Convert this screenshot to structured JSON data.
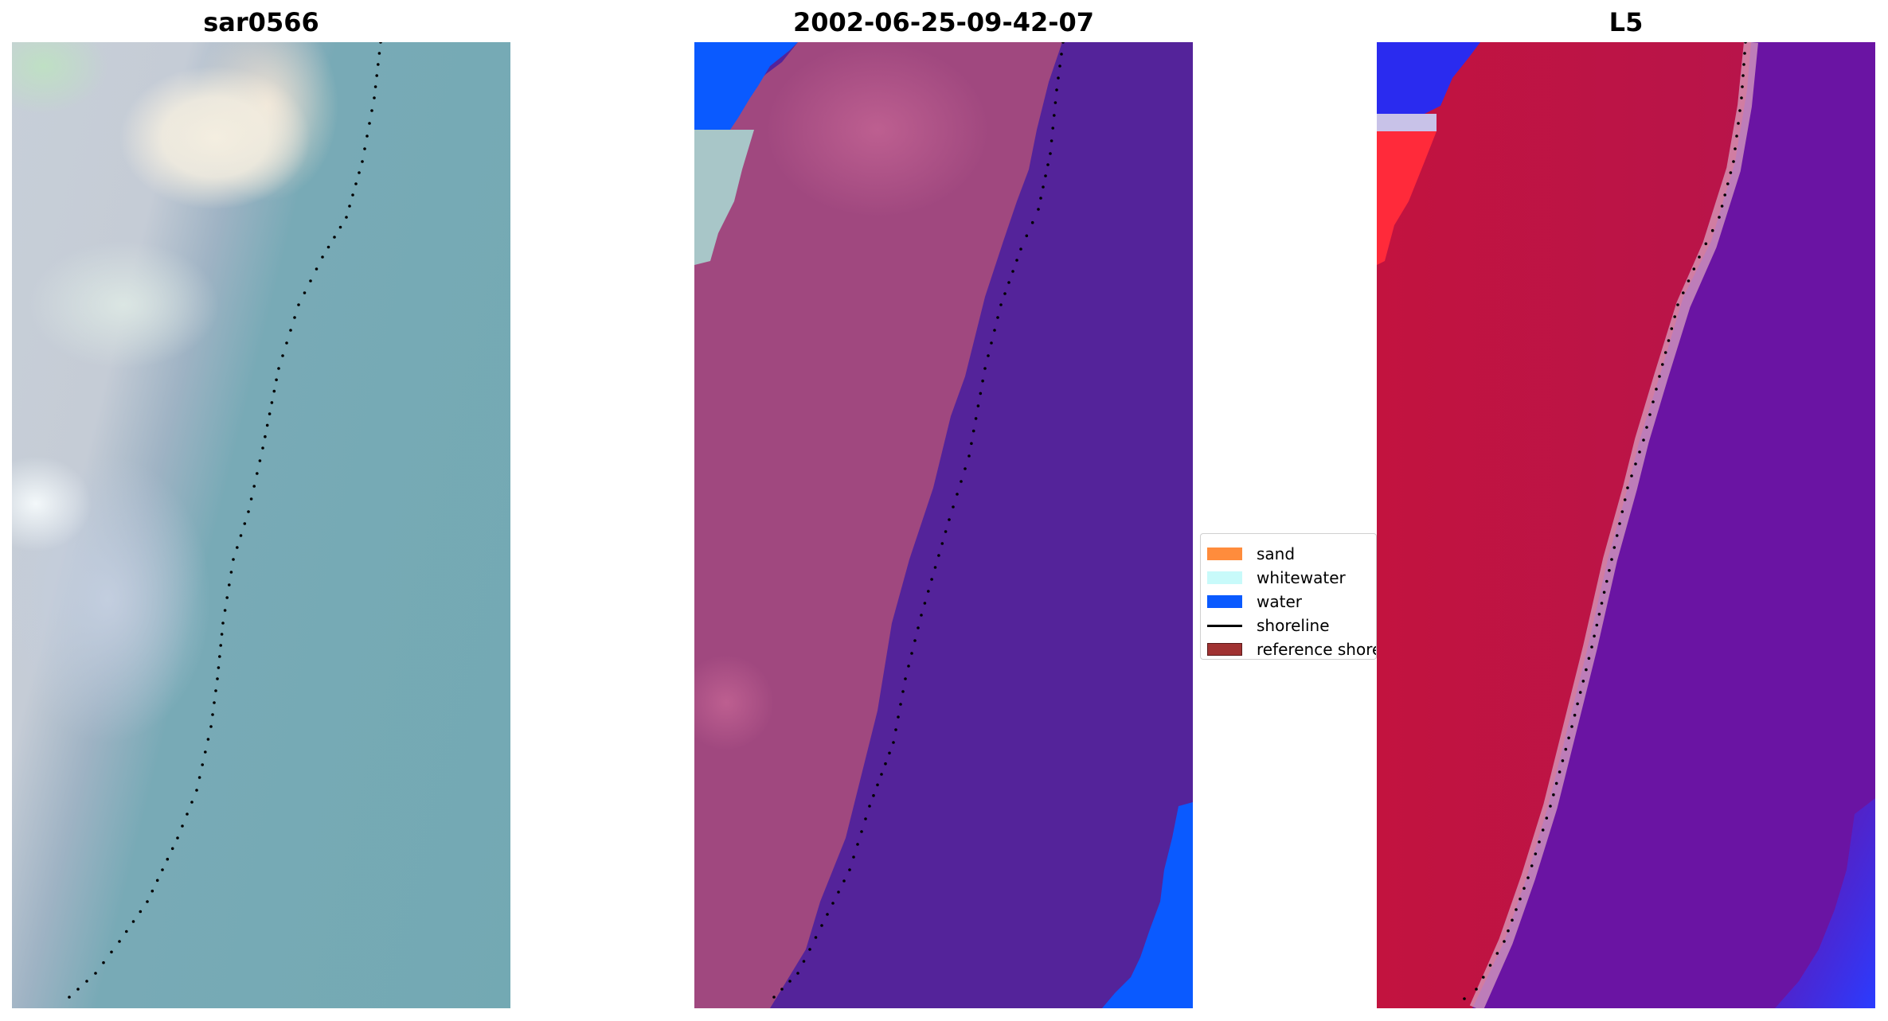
{
  "panels": [
    {
      "title": "sar0566"
    },
    {
      "title": "2002-06-25-09-42-07"
    },
    {
      "title": "L5"
    }
  ],
  "legend": {
    "items": [
      {
        "label": "sand",
        "color": "#ff8c3c"
      },
      {
        "label": "whitewater",
        "color": "#c8fafa"
      },
      {
        "label": "water",
        "color": "#0a5aff"
      },
      {
        "label": "shoreline",
        "color": "#000000"
      },
      {
        "label": "reference shore",
        "color": "#a03232"
      }
    ]
  },
  "colors": {
    "sand_land": "#a0487f",
    "water_class": "#54239a",
    "water_blue": "#0a5aff",
    "index_land": "#c2133f",
    "index_water": "#6a14a3",
    "shoreline_dots": "#000000"
  }
}
